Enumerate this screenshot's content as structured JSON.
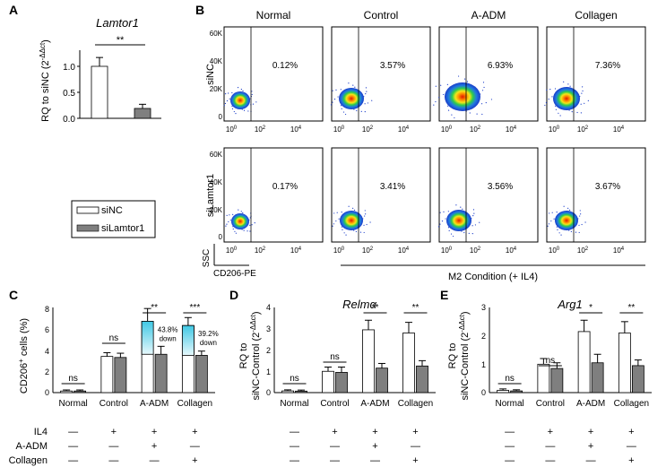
{
  "panel_labels": [
    "A",
    "B",
    "C",
    "D",
    "E"
  ],
  "panel_a": {
    "title": "Lamtor1",
    "ylabel_prefix": "RQ to siNC (2",
    "ylabel_sup": "-ΔΔct",
    "ylabel_suffix": ")",
    "ticks": [
      "1.0",
      "0.5",
      "0.0"
    ],
    "sig": "**"
  },
  "legend": {
    "sinc": "siNC",
    "silamtor1": "siLamtor1"
  },
  "panel_b": {
    "conditions": [
      "Normal",
      "Control",
      "A-ADM",
      "Collagen"
    ],
    "rows": [
      "siNC",
      "siLamtor1"
    ],
    "percent_sinc": [
      "0.12%",
      "3.57%",
      "6.93%",
      "7.36%"
    ],
    "percent_silamtor1": [
      "0.17%",
      "3.41%",
      "3.56%",
      "3.67%"
    ],
    "yticks": [
      "60K",
      "40K",
      "20K",
      "0"
    ],
    "xtick_base": "10",
    "xtick_exps": [
      "0",
      "2",
      "4"
    ],
    "ssc_label": "SSC",
    "cd206_label": "CD206-PE",
    "m2_label": "M2 Condition (+ IL4)"
  },
  "panel_c": {
    "ylabel_main": "CD206",
    "ylabel_sup": "+",
    "ylabel_rest": " cells (%)",
    "ticks": [
      "8",
      "6",
      "4",
      "2",
      "0"
    ],
    "sig": [
      "ns",
      "ns",
      "**",
      "***"
    ],
    "annot1": [
      "43.8%",
      "down"
    ],
    "annot2": [
      "39.2%",
      "down"
    ]
  },
  "panel_d": {
    "title": "Relmα",
    "ylabel1": "RQ to",
    "ylabel2_prefix": "siNC-Control (2",
    "ylabel_sup": "-ΔΔct",
    "ylabel_suffix": ")",
    "ticks": [
      "4",
      "3",
      "2",
      "1",
      "0"
    ],
    "sig": [
      "ns",
      "ns",
      "**",
      "**"
    ]
  },
  "panel_e": {
    "title": "Arg1",
    "ylabel1": "RQ to",
    "ylabel2_prefix": "siNC-Control (2",
    "ylabel_sup": "-ΔΔct",
    "ylabel_suffix": ")",
    "ticks": [
      "3",
      "2",
      "1",
      "0"
    ],
    "sig": [
      "ns",
      "ns",
      "*",
      "**"
    ]
  },
  "treatment_table": {
    "row_labels": [
      "IL4",
      "A-ADM",
      "Collagen"
    ],
    "minus": "—",
    "plus": "+",
    "matrix": [
      [
        0,
        1,
        1,
        1
      ],
      [
        0,
        0,
        1,
        0
      ],
      [
        0,
        0,
        0,
        1
      ]
    ]
  },
  "chart_data": [
    {
      "type": "bar",
      "panel": "A",
      "title": "Lamtor1",
      "ylabel": "RQ to siNC (2^-ΔΔct)",
      "categories": [
        "siNC",
        "siLamtor1"
      ],
      "values": [
        1.0,
        0.19
      ],
      "errors": [
        0.17,
        0.08
      ],
      "ylim": [
        0,
        1.25
      ],
      "significance": "**"
    },
    {
      "type": "bar",
      "panel": "C",
      "title": "",
      "ylabel": "CD206+ cells (%)",
      "categories": [
        "Normal",
        "Control",
        "A-ADM",
        "Collagen"
      ],
      "series": [
        {
          "name": "siNC",
          "values": [
            0.15,
            3.4,
            6.7,
            6.3
          ],
          "errors": [
            0.1,
            0.35,
            1.2,
            0.75
          ]
        },
        {
          "name": "siLamtor1",
          "values": [
            0.15,
            3.3,
            3.6,
            3.5
          ],
          "errors": [
            0.1,
            0.4,
            0.75,
            0.4
          ]
        }
      ],
      "ylim": [
        0,
        8
      ],
      "significance": [
        "ns",
        "ns",
        "**",
        "***"
      ],
      "annotations": [
        "43.8% down",
        "39.2% down"
      ]
    },
    {
      "type": "bar",
      "panel": "D",
      "title": "Relmα",
      "ylabel": "RQ to siNC-Control (2^-ΔΔct)",
      "categories": [
        "Normal",
        "Control",
        "A-ADM",
        "Collagen"
      ],
      "series": [
        {
          "name": "siNC",
          "values": [
            0.08,
            1.0,
            2.95,
            2.8
          ],
          "errors": [
            0.05,
            0.2,
            0.45,
            0.5
          ]
        },
        {
          "name": "siLamtor1",
          "values": [
            0.07,
            0.95,
            1.15,
            1.25
          ],
          "errors": [
            0.05,
            0.25,
            0.22,
            0.25
          ]
        }
      ],
      "ylim": [
        0,
        4
      ],
      "significance": [
        "ns",
        "ns",
        "**",
        "**"
      ]
    },
    {
      "type": "bar",
      "panel": "E",
      "title": "Arg1",
      "ylabel": "RQ to siNC-Control (2^-ΔΔct)",
      "categories": [
        "Normal",
        "Control",
        "A-ADM",
        "Collagen"
      ],
      "series": [
        {
          "name": "siNC",
          "values": [
            0.08,
            1.0,
            2.15,
            2.1
          ],
          "errors": [
            0.05,
            0.2,
            0.4,
            0.4
          ]
        },
        {
          "name": "siLamtor1",
          "values": [
            0.06,
            0.85,
            1.05,
            0.95
          ],
          "errors": [
            0.04,
            0.2,
            0.3,
            0.2
          ]
        }
      ],
      "ylim": [
        0,
        3
      ],
      "significance": [
        "ns",
        "ns",
        "*",
        "**"
      ]
    }
  ],
  "colors": {
    "sinc_fill": "#ffffff",
    "silamtor1_fill": "#7f7f7f",
    "cyan_top": "#3fc8e4",
    "cyan_bottom": "#e6f8fc"
  }
}
